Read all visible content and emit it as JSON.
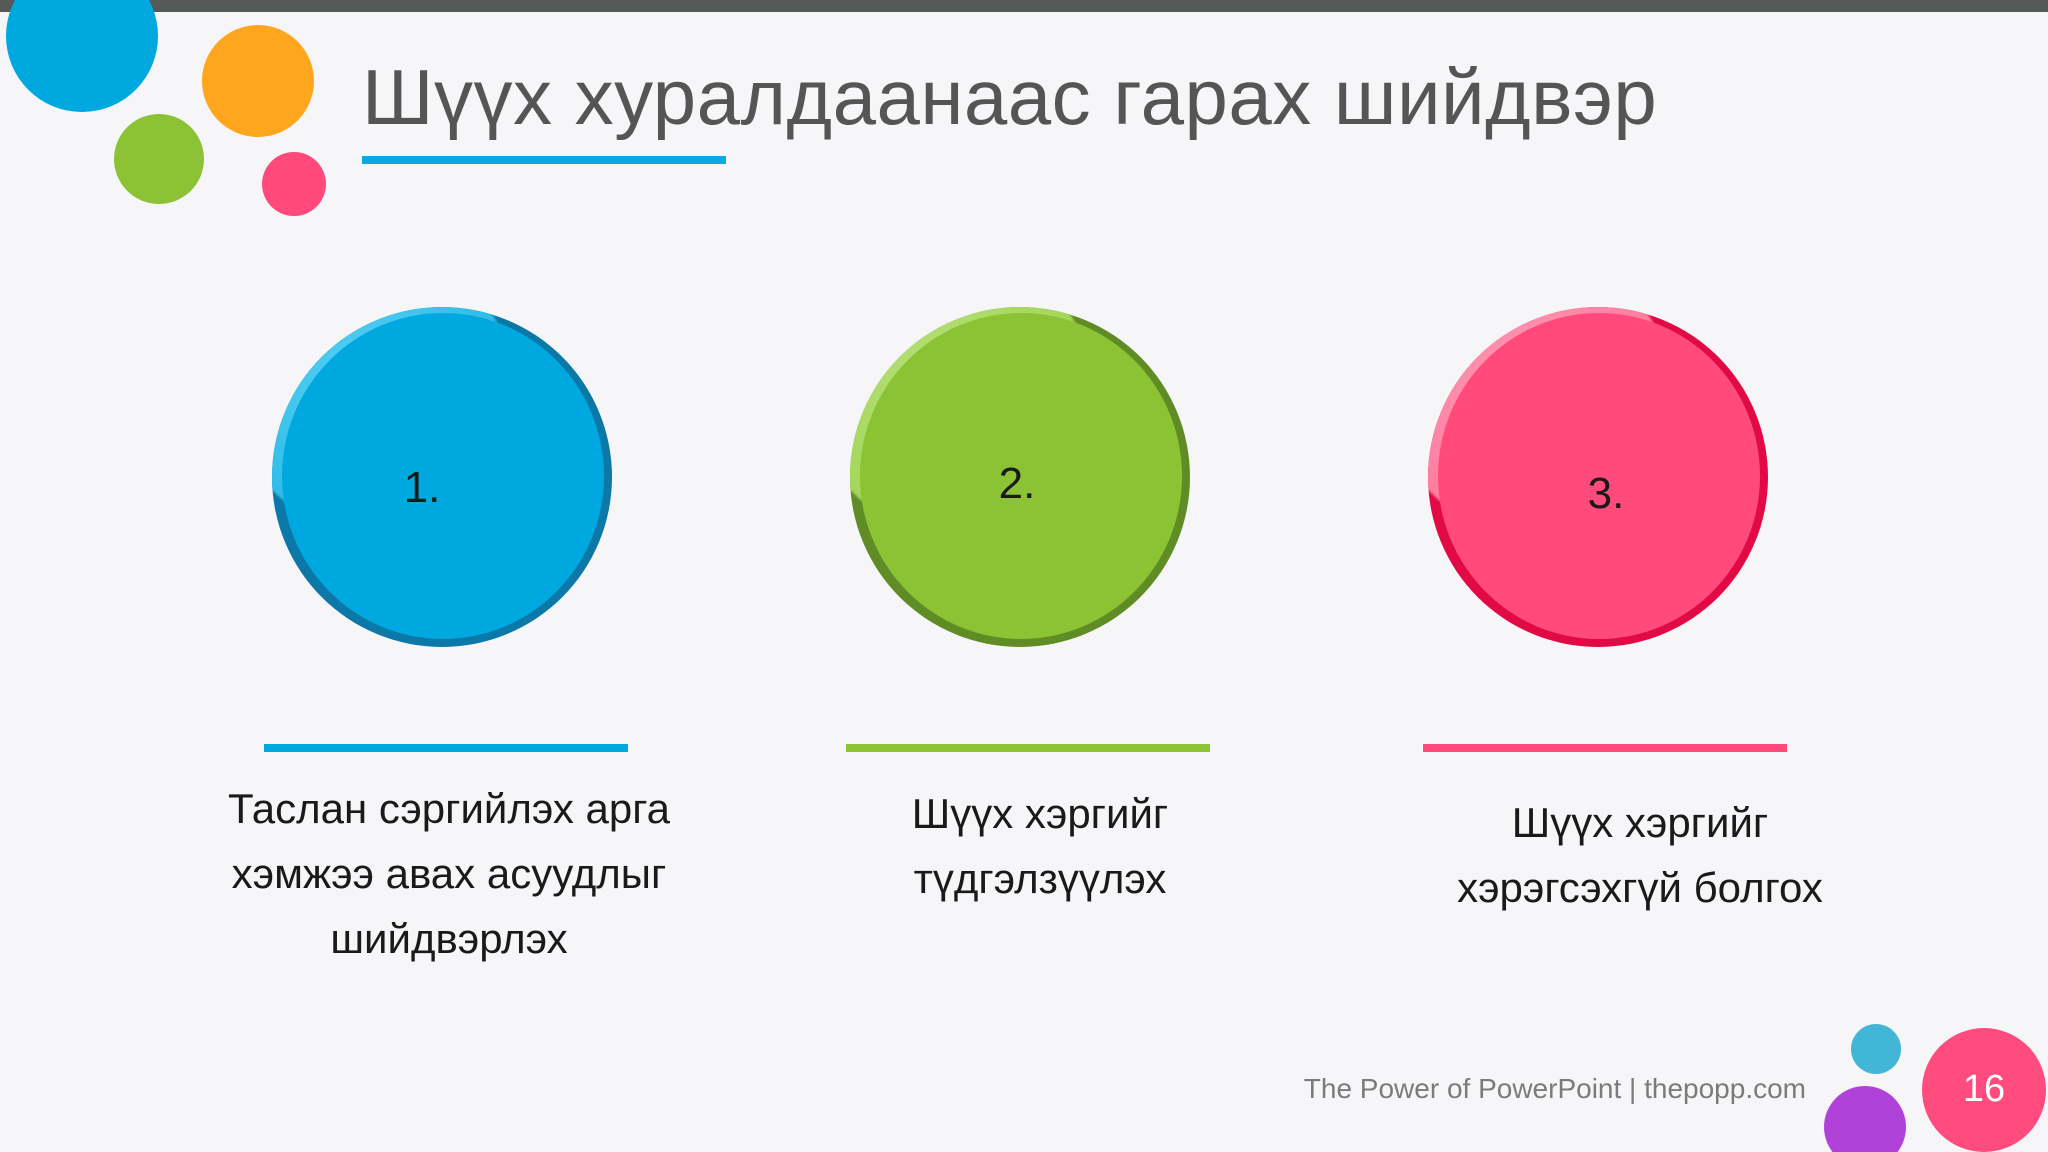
{
  "slide": {
    "title": "Шүүх хуралдаанаас гарах шийдвэр",
    "items": [
      {
        "number": "1.",
        "lines": [
          "Таслан сэргийлэх арга",
          "хэмжээ авах асуудлыг",
          "шийдвэрлэх"
        ],
        "color": "#00a8e0"
      },
      {
        "number": "2.",
        "lines": [
          "Шүүх хэргийг",
          "түдгэлзүүлэх"
        ],
        "color": "#8bc334"
      },
      {
        "number": "3.",
        "lines": [
          "Шүүх хэргийг",
          "хэрэгсэхгүй болгох"
        ],
        "color": "#ff4a7b"
      }
    ],
    "footer": "The Power of PowerPoint | thepopp.com",
    "page_number": "16"
  },
  "colors": {
    "top_bar": "#555a58",
    "title_text": "#555555",
    "accent_blue": "#00a8e0",
    "accent_green": "#8bc334",
    "accent_pink": "#ff4a7b",
    "accent_orange": "#ffa51e",
    "accent_purple": "#b042d9"
  }
}
